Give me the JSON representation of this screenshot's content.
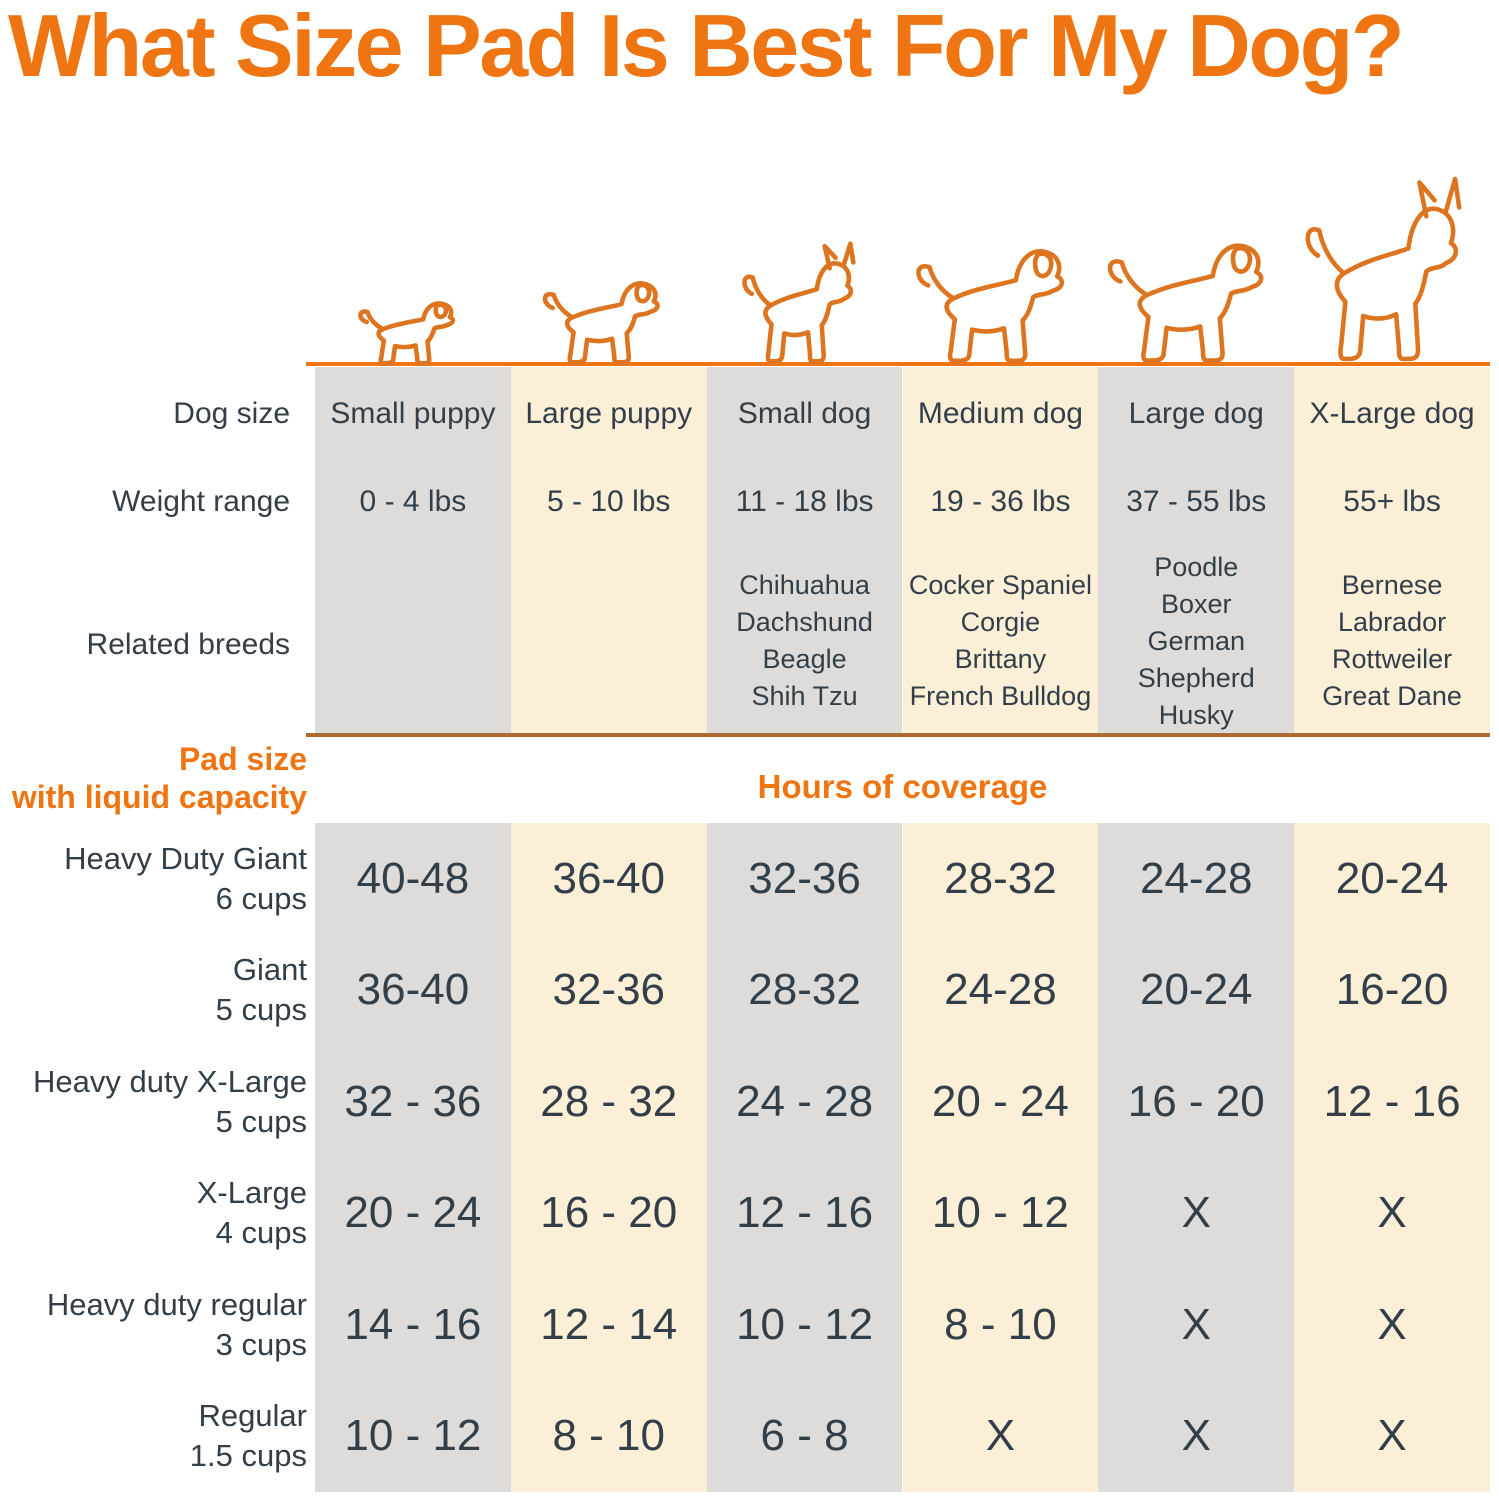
{
  "title": "What Size Pad Is Best For My Dog?",
  "colors": {
    "orange": "#EE7511",
    "divider_line": "#AF6A32",
    "column_gray": "#DDDCDB",
    "column_cream": "#FCEFD8",
    "text_ink": "#333F48",
    "dog_outline": "#DD7520"
  },
  "table": {
    "row_labels": {
      "dog_size": "Dog size",
      "weight": "Weight range",
      "breeds": "Related breeds",
      "pad_size_line1": "Pad size",
      "pad_size_line2": "with liquid capacity"
    },
    "hours_header": "Hours of coverage",
    "columns": [
      {
        "dog_size": "Small puppy",
        "weight": "0 - 4 lbs",
        "breeds": [],
        "shade": "gray",
        "icon": "small-puppy-icon",
        "ear": "floppy"
      },
      {
        "dog_size": "Large puppy",
        "weight": "5 - 10 lbs",
        "breeds": [],
        "shade": "cream",
        "icon": "large-puppy-icon",
        "ear": "floppy"
      },
      {
        "dog_size": "Small dog",
        "weight": "11 - 18 lbs",
        "breeds": [
          "Chihuahua",
          "Dachshund",
          "Beagle",
          "Shih Tzu"
        ],
        "shade": "gray",
        "icon": "small-dog-icon",
        "ear": "pointy"
      },
      {
        "dog_size": "Medium dog",
        "weight": "19 - 36 lbs",
        "breeds": [
          "Cocker Spaniel",
          "Corgie",
          "Brittany",
          "French Bulldog"
        ],
        "shade": "cream",
        "icon": "medium-dog-icon",
        "ear": "floppy"
      },
      {
        "dog_size": "Large dog",
        "weight": "37 - 55 lbs",
        "breeds": [
          "Poodle",
          "Boxer",
          "German Shepherd",
          "Husky"
        ],
        "shade": "gray",
        "icon": "large-dog-icon",
        "ear": "floppy"
      },
      {
        "dog_size": "X-Large dog",
        "weight": "55+ lbs",
        "breeds": [
          "Bernese",
          "Labrador",
          "Rottweiler",
          "Great Dane"
        ],
        "shade": "cream",
        "icon": "x-large-dog-icon",
        "ear": "pointy"
      }
    ],
    "pad_rows": [
      {
        "name": "Heavy Duty Giant",
        "capacity": "6 cups",
        "values": [
          "40-48",
          "36-40",
          "32-36",
          "28-32",
          "24-28",
          "20-24"
        ]
      },
      {
        "name": "Giant",
        "capacity": "5 cups",
        "values": [
          "36-40",
          "32-36",
          "28-32",
          "24-28",
          "20-24",
          "16-20"
        ]
      },
      {
        "name": "Heavy duty X-Large",
        "capacity": "5 cups",
        "values": [
          "32 - 36",
          "28 - 32",
          "24 - 28",
          "20 - 24",
          "16 - 20",
          "12 - 16"
        ]
      },
      {
        "name": "X-Large",
        "capacity": "4 cups",
        "values": [
          "20 - 24",
          "16 - 20",
          "12 - 16",
          "10 - 12",
          "X",
          "X"
        ]
      },
      {
        "name": "Heavy duty regular",
        "capacity": "3 cups",
        "values": [
          "14 - 16",
          "12 - 14",
          "10 - 12",
          "8 - 10",
          "X",
          "X"
        ]
      },
      {
        "name": "Regular",
        "capacity": "1.5 cups",
        "values": [
          "10 - 12",
          "8 - 10",
          "6 - 8",
          "X",
          "X",
          "X"
        ]
      }
    ]
  },
  "chart_data": {
    "type": "table",
    "title": "What Size Pad Is Best For My Dog?",
    "columns": [
      "Small puppy",
      "Large puppy",
      "Small dog",
      "Medium dog",
      "Large dog",
      "X-Large dog"
    ],
    "weight_ranges": [
      "0 - 4 lbs",
      "5 - 10 lbs",
      "11 - 18 lbs",
      "19 - 36 lbs",
      "37 - 55 lbs",
      "55+ lbs"
    ],
    "related_breeds": [
      [],
      [],
      [
        "Chihuahua",
        "Dachshund",
        "Beagle",
        "Shih Tzu"
      ],
      [
        "Cocker Spaniel",
        "Corgie",
        "Brittany",
        "French Bulldog"
      ],
      [
        "Poodle",
        "Boxer",
        "German Shepherd",
        "Husky"
      ],
      [
        "Bernese",
        "Labrador",
        "Rottweiler",
        "Great Dane"
      ]
    ],
    "value_header": "Hours of coverage",
    "rows": [
      {
        "pad": "Heavy Duty Giant",
        "capacity": "6 cups",
        "hours": [
          "40-48",
          "36-40",
          "32-36",
          "28-32",
          "24-28",
          "20-24"
        ]
      },
      {
        "pad": "Giant",
        "capacity": "5 cups",
        "hours": [
          "36-40",
          "32-36",
          "28-32",
          "24-28",
          "20-24",
          "16-20"
        ]
      },
      {
        "pad": "Heavy duty X-Large",
        "capacity": "5 cups",
        "hours": [
          "32 - 36",
          "28 - 32",
          "24 - 28",
          "20 - 24",
          "16 - 20",
          "12 - 16"
        ]
      },
      {
        "pad": "X-Large",
        "capacity": "4 cups",
        "hours": [
          "20 - 24",
          "16 - 20",
          "12 - 16",
          "10 - 12",
          "X",
          "X"
        ]
      },
      {
        "pad": "Heavy duty regular",
        "capacity": "3 cups",
        "hours": [
          "14 - 16",
          "12 - 14",
          "10 - 12",
          "8 - 10",
          "X",
          "X"
        ]
      },
      {
        "pad": "Regular",
        "capacity": "1.5 cups",
        "hours": [
          "10 - 12",
          "8 - 10",
          "6 - 8",
          "X",
          "X",
          "X"
        ]
      }
    ]
  }
}
